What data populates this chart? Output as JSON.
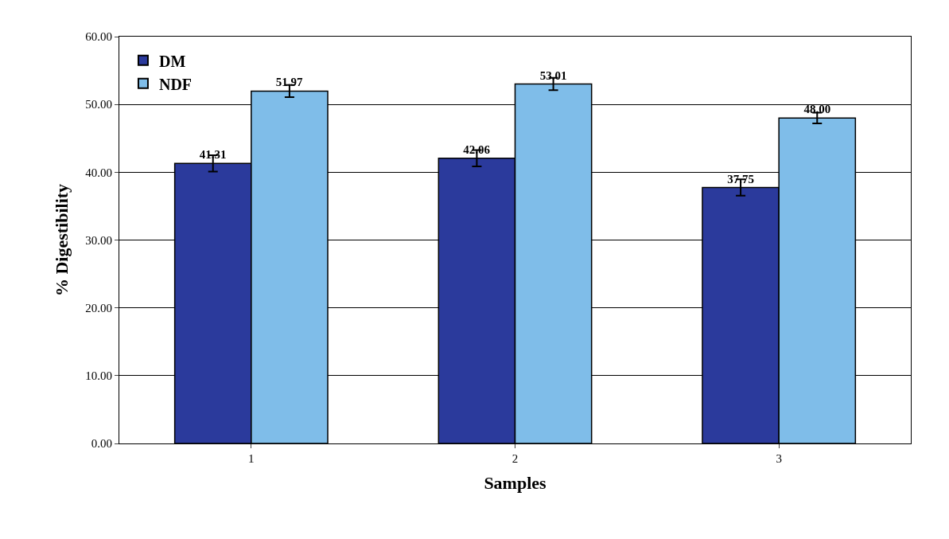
{
  "chart_data": {
    "type": "bar",
    "xlabel": "Samples",
    "ylabel": "% Digestibility",
    "categories": [
      "1",
      "2",
      "3"
    ],
    "series": [
      {
        "name": "DM",
        "color": "#2b3a9c",
        "values": [
          41.31,
          42.06,
          37.75
        ],
        "errors": [
          1.2,
          1.2,
          1.2
        ]
      },
      {
        "name": "NDF",
        "color": "#7fbde9",
        "values": [
          51.97,
          53.01,
          48.0
        ],
        "errors": [
          0.9,
          0.9,
          0.8
        ]
      }
    ],
    "value_labels": [
      [
        "41.31",
        "42.06",
        "37.75"
      ],
      [
        "51.97",
        "53.01",
        "48.00"
      ]
    ],
    "ylim": [
      0,
      60
    ],
    "yticks": [
      {
        "value": 0,
        "label": "0.00"
      },
      {
        "value": 10,
        "label": "10.00"
      },
      {
        "value": 20,
        "label": "20.00"
      },
      {
        "value": 30,
        "label": "30.00"
      },
      {
        "value": 40,
        "label": "40.00"
      },
      {
        "value": 50,
        "label": "50.00"
      },
      {
        "value": 60,
        "label": "60.00"
      }
    ],
    "grid": "y",
    "legend": "top left"
  }
}
